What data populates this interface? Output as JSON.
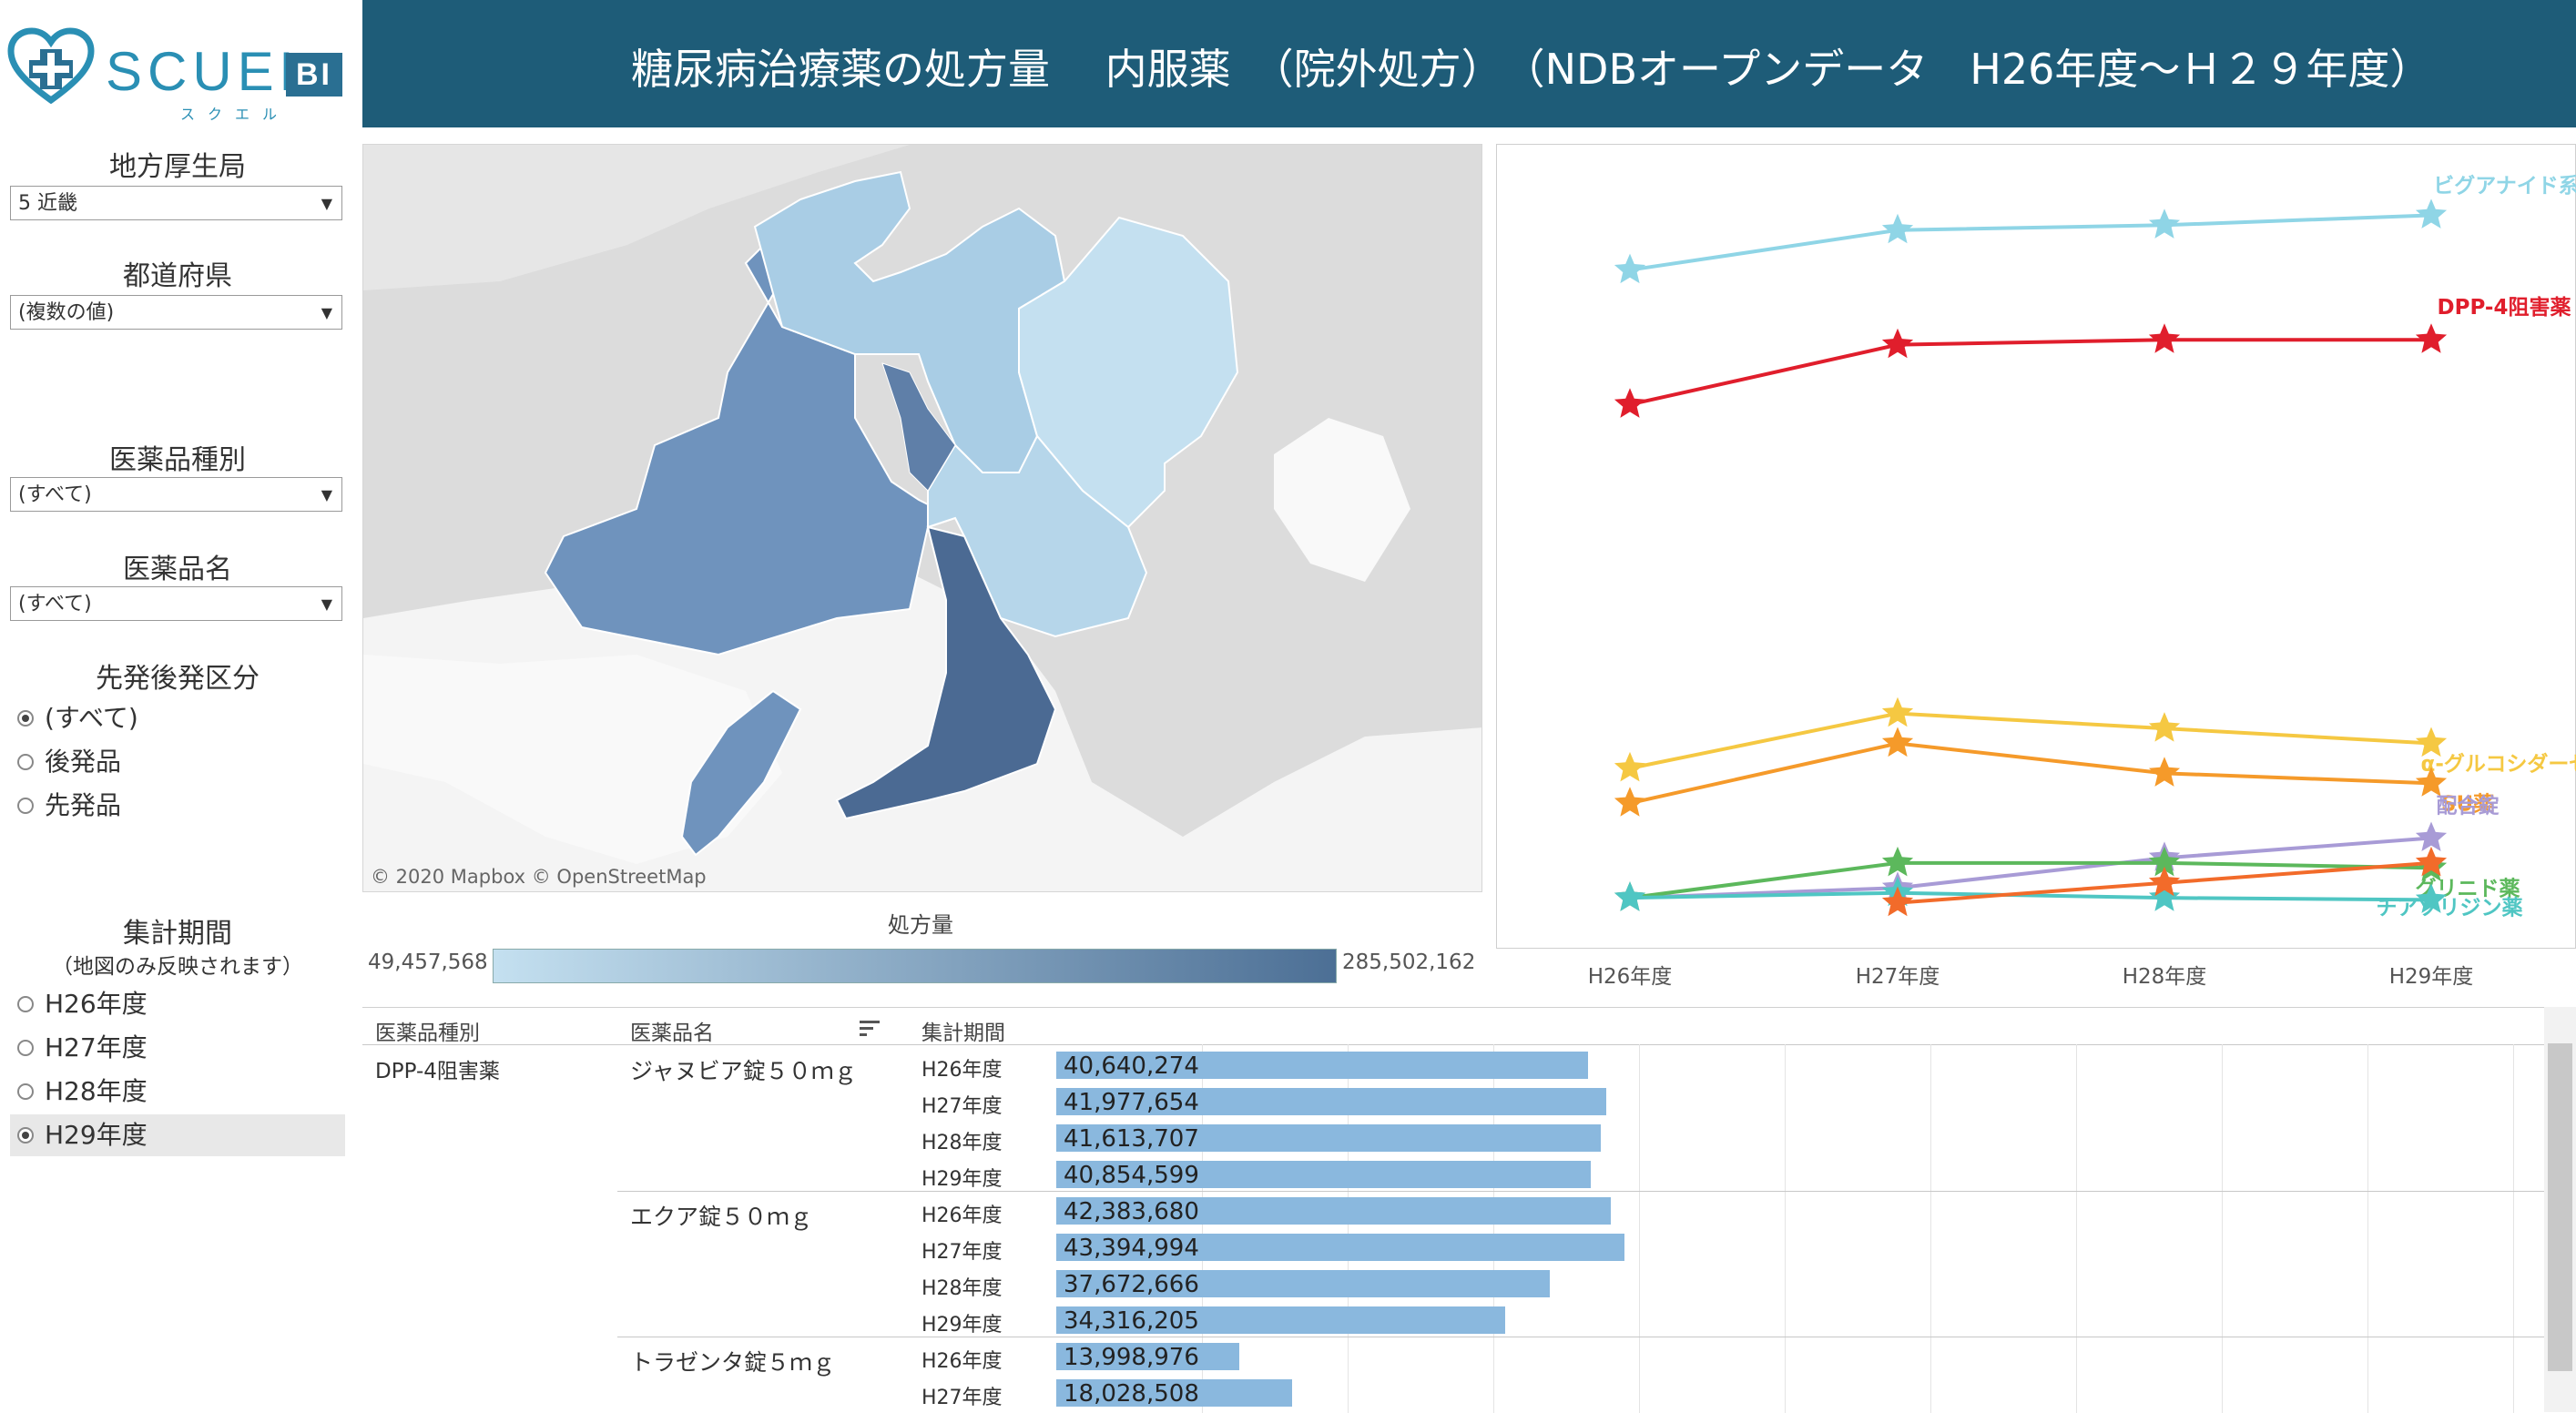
{
  "logo": {
    "text": "SCUEL",
    "sub": "スクエル",
    "badge": "BI"
  },
  "header": {
    "title": "糖尿病治療薬の処方量　 内服薬　（院外処方）　（NDBオープンデータ　H26年度～Ｈ２９年度）"
  },
  "filters": {
    "region": {
      "label": "地方厚生局",
      "value": "5 近畿"
    },
    "prefecture": {
      "label": "都道府県",
      "value": "(複数の値)"
    },
    "drug_type": {
      "label": "医薬品種別",
      "value": "(すべて)"
    },
    "drug_name": {
      "label": "医薬品名",
      "value": "(すべて)"
    },
    "generic": {
      "label": "先発後発区分",
      "options": [
        "(すべて)",
        "後発品",
        "先発品"
      ],
      "selected": 0
    },
    "period": {
      "label": "集計期間",
      "note": "（地図のみ反映されます）",
      "options": [
        "H26年度",
        "H27年度",
        "H28年度",
        "H29年度"
      ],
      "selected": 3
    }
  },
  "map": {
    "attribution": "© 2020 Mapbox  © OpenStreetMap",
    "legend_title": "処方量",
    "legend_min": "49,457,568",
    "legend_max": "285,502,162",
    "colors": {
      "low": "#c4e0f0",
      "high": "#4c6f95"
    }
  },
  "chart_data": {
    "type": "line",
    "categories": [
      "H26年度",
      "H27年度",
      "H28年度",
      "H29年度"
    ],
    "ylabel": "",
    "series": [
      {
        "name": "ビグアナイド系薬",
        "color": "#8fd5e6",
        "values": [
          95,
          99,
          99.5,
          100.5
        ]
      },
      {
        "name": "DPP-4阻害薬",
        "color": "#e01e2c",
        "values": [
          81.5,
          87.5,
          88,
          88
        ]
      },
      {
        "name": "α-グルコシダーゼ阻害薬",
        "color": "#f5c842",
        "values": [
          45,
          50.5,
          49,
          47.5
        ]
      },
      {
        "name": "SU薬",
        "color": "#f59a2a",
        "values": [
          41.5,
          47.5,
          44.5,
          43.5
        ]
      },
      {
        "name": "配合錠",
        "color": "#a89bd6",
        "values": [
          32,
          33,
          36,
          38
        ]
      },
      {
        "name": "グリニド薬",
        "color": "#5cb85c",
        "values": [
          32,
          35.5,
          35.5,
          35
        ]
      },
      {
        "name": "チアゾリジン薬",
        "color": "#4fc6c3",
        "values": [
          32,
          32.5,
          32,
          31.8
        ]
      },
      {
        "name": "",
        "color": "#f26b2a",
        "values": [
          null,
          31.5,
          33.5,
          35.5
        ]
      }
    ],
    "ylim": [
      29,
      103
    ]
  },
  "table": {
    "headers": {
      "type": "医薬品種別",
      "name": "医薬品名",
      "period": "集計期間"
    },
    "bar_scale_max": 100000000,
    "groups": [
      {
        "type": "DPP-4阻害薬",
        "drugs": [
          {
            "name": "ジャヌビア錠５０ｍｇ",
            "rows": [
              {
                "period": "H26年度",
                "value": 40640274,
                "label": "40,640,274"
              },
              {
                "period": "H27年度",
                "value": 41977654,
                "label": "41,977,654"
              },
              {
                "period": "H28年度",
                "value": 41613707,
                "label": "41,613,707"
              },
              {
                "period": "H29年度",
                "value": 40854599,
                "label": "40,854,599"
              }
            ]
          },
          {
            "name": "エクア錠５０ｍｇ",
            "rows": [
              {
                "period": "H26年度",
                "value": 42383680,
                "label": "42,383,680"
              },
              {
                "period": "H27年度",
                "value": 43394994,
                "label": "43,394,994"
              },
              {
                "period": "H28年度",
                "value": 37672666,
                "label": "37,672,666"
              },
              {
                "period": "H29年度",
                "value": 34316205,
                "label": "34,316,205"
              }
            ]
          },
          {
            "name": "トラゼンタ錠５ｍｇ",
            "rows": [
              {
                "period": "H26年度",
                "value": 13998976,
                "label": "13,998,976"
              },
              {
                "period": "H27年度",
                "value": 18028508,
                "label": "18,028,508"
              }
            ]
          }
        ]
      }
    ]
  }
}
